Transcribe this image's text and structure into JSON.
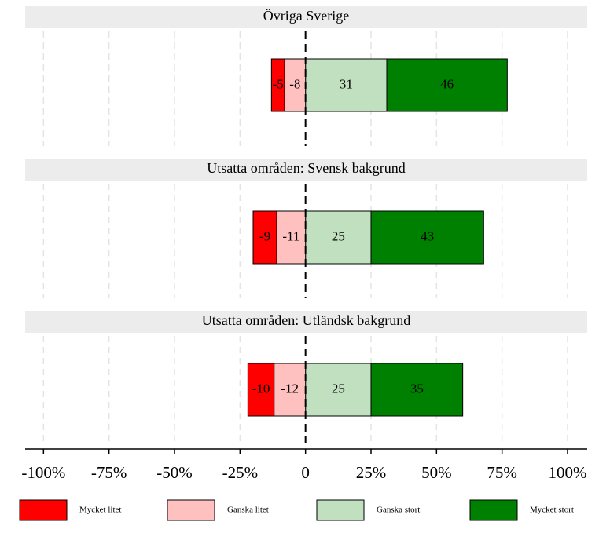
{
  "chart_data": {
    "type": "bar",
    "categories": [
      "Övriga Sverige",
      "Utsatta områden: Svensk bakgrund",
      "Utsatta områden: Utländsk bakgrund"
    ],
    "series": [
      {
        "name": "Mycket litet",
        "color": "#ff0000",
        "values": [
          -5,
          -9,
          -10
        ]
      },
      {
        "name": "Ganska litet",
        "color": "#ffc0c0",
        "values": [
          -8,
          -11,
          -12
        ]
      },
      {
        "name": "Ganska stort",
        "color": "#c0e0c0",
        "values": [
          31,
          25,
          25
        ]
      },
      {
        "name": "Mycket stort",
        "color": "#008000",
        "values": [
          46,
          43,
          35
        ]
      }
    ],
    "xlim": [
      -107,
      107.5
    ],
    "xticks": [
      {
        "value": -100,
        "label": "-100%"
      },
      {
        "value": -75,
        "label": "-75%"
      },
      {
        "value": -50,
        "label": "-50%"
      },
      {
        "value": -25,
        "label": "-25%"
      },
      0,
      {
        "value": 25,
        "label": "25%"
      },
      {
        "value": 50,
        "label": "50%"
      },
      {
        "value": 75,
        "label": "75%"
      },
      {
        "value": 100,
        "label": "100%"
      }
    ],
    "grid": true,
    "legend": "bottom"
  }
}
